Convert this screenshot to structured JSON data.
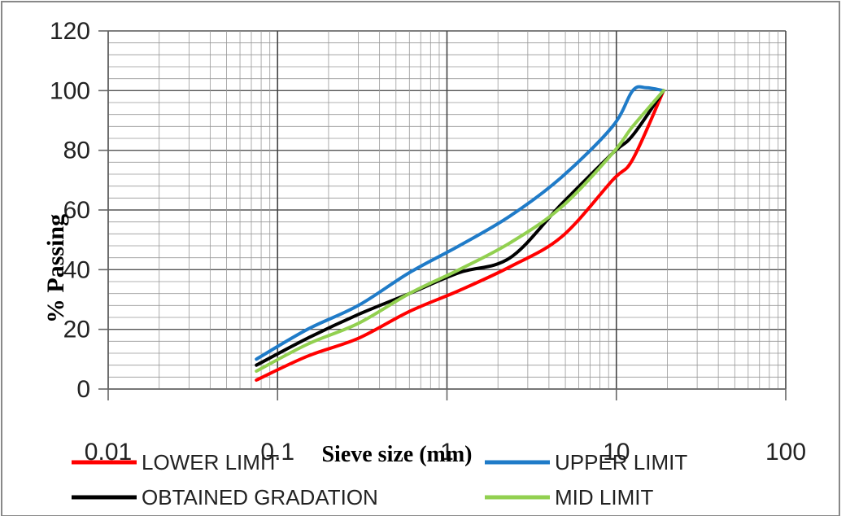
{
  "chart_data": {
    "type": "line",
    "xlabel": "Sieve size (mm)",
    "ylabel": "% Passing",
    "xscale": "log",
    "xlim": [
      0.01,
      100
    ],
    "ylim": [
      0,
      120
    ],
    "grid": true,
    "legend_position": "bottom",
    "x_tick_labels": [
      "0.01",
      "0.1",
      "1",
      "10",
      "100"
    ],
    "y_tick_labels": [
      "0",
      "20",
      "40",
      "60",
      "80",
      "100",
      "120"
    ],
    "series": [
      {
        "name": "LOWER LIMIT",
        "color": "#ff0000",
        "points": [
          [
            0.075,
            3
          ],
          [
            0.15,
            11
          ],
          [
            0.3,
            17
          ],
          [
            0.6,
            26
          ],
          [
            1.18,
            33
          ],
          [
            2.36,
            41
          ],
          [
            4.75,
            51
          ],
          [
            9.5,
            70
          ],
          [
            12.5,
            77
          ],
          [
            19,
            100
          ]
        ]
      },
      {
        "name": "UPPER LIMIT",
        "color": "#1f7bc8",
        "points": [
          [
            0.075,
            10
          ],
          [
            0.15,
            20
          ],
          [
            0.3,
            28
          ],
          [
            0.6,
            39
          ],
          [
            1.18,
            48
          ],
          [
            2.36,
            58
          ],
          [
            4.75,
            71
          ],
          [
            9.5,
            88
          ],
          [
            12.5,
            100
          ],
          [
            15,
            101
          ],
          [
            19,
            100
          ]
        ]
      },
      {
        "name": "OBTAINED GRADATION",
        "color": "#000000",
        "points": [
          [
            0.075,
            8
          ],
          [
            0.15,
            17
          ],
          [
            0.3,
            25
          ],
          [
            0.6,
            32
          ],
          [
            1.18,
            39
          ],
          [
            2.36,
            44
          ],
          [
            4.75,
            62
          ],
          [
            9.5,
            79
          ],
          [
            12.5,
            85
          ],
          [
            19,
            100
          ]
        ]
      },
      {
        "name": "MID LIMIT",
        "color": "#92d050",
        "points": [
          [
            0.075,
            6
          ],
          [
            0.15,
            15
          ],
          [
            0.3,
            22
          ],
          [
            0.6,
            32
          ],
          [
            1.18,
            40
          ],
          [
            2.36,
            49
          ],
          [
            4.75,
            61
          ],
          [
            9.5,
            79
          ],
          [
            12.5,
            88
          ],
          [
            19,
            100
          ]
        ]
      }
    ]
  }
}
